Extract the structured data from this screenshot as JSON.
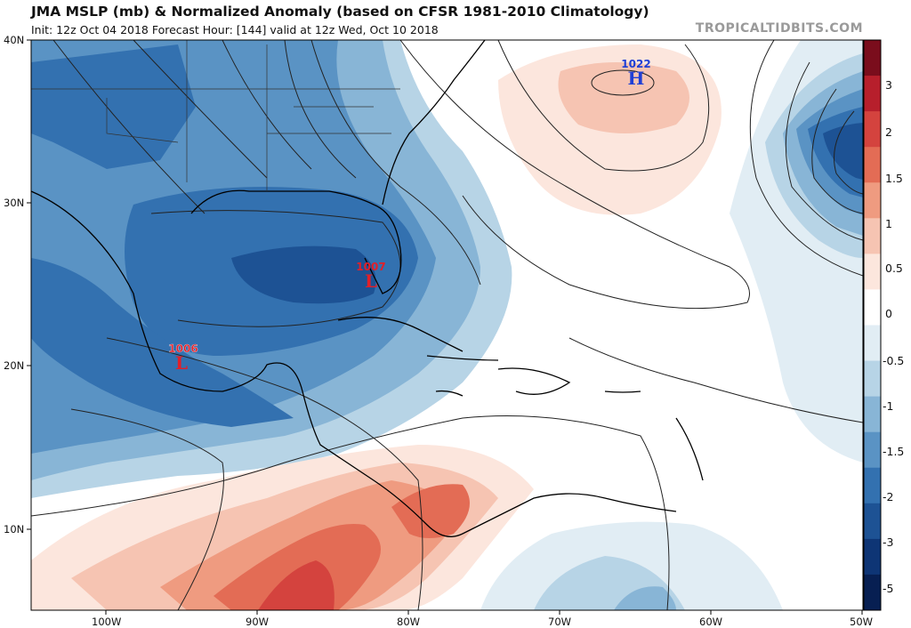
{
  "header": {
    "title": "JMA MSLP (mb) & Normalized Anomaly (based on CFSR 1981-2010 Climatology)",
    "subtitle": "Init: 12z Oct 04 2018   Forecast Hour: [144]   valid at 12z Wed, Oct 10 2018",
    "brand": "TROPICALTIDBITS.COM"
  },
  "axes": {
    "lat_labels": [
      "40N",
      "30N",
      "20N",
      "10N"
    ],
    "lon_labels": [
      "100W",
      "90W",
      "80W",
      "70W",
      "60W",
      "50W"
    ]
  },
  "pressure_centers": [
    {
      "type": "L",
      "value": "1006",
      "color": "#e0202a"
    },
    {
      "type": "L",
      "value": "1007",
      "color": "#e0202a"
    },
    {
      "type": "H",
      "value": "1022",
      "color": "#1f3fd6"
    }
  ],
  "colorbar": {
    "labels": [
      "3",
      "2",
      "1.5",
      "1",
      "0.5",
      "0",
      "-0.5",
      "-1",
      "-1.5",
      "-2",
      "-3",
      "-5"
    ],
    "colors": [
      "#7a0d1c",
      "#b71f2c",
      "#d4433e",
      "#e36c55",
      "#ef9b80",
      "#f6c4b2",
      "#fce6dd",
      "#ffffff",
      "#e1edf4",
      "#b7d4e6",
      "#88b5d6",
      "#5a93c4",
      "#3371b0",
      "#1d5294",
      "#0e3575",
      "#071f52"
    ]
  }
}
